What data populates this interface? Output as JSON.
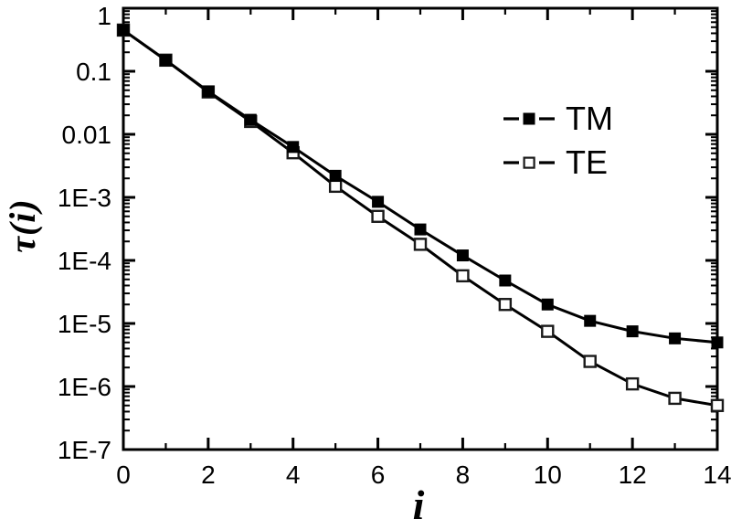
{
  "figure": {
    "background": "#ffffff",
    "axis_color": "#000000"
  },
  "chart_data": {
    "type": "line",
    "title": "",
    "xlabel": "i",
    "ylabel": "τ(i)",
    "x_scale": "linear",
    "y_scale": "log",
    "xlim": [
      0,
      14
    ],
    "ylim": [
      1e-07,
      1
    ],
    "grid": false,
    "legend_position": "upper-right",
    "x_major_ticks": [
      0,
      2,
      4,
      6,
      8,
      10,
      12,
      14
    ],
    "x_minor_ticks": [
      1,
      3,
      5,
      7,
      9,
      11,
      13
    ],
    "x_tick_labels": [
      "0",
      "2",
      "4",
      "6",
      "8",
      "10",
      "12",
      "14"
    ],
    "y_major_ticks": [
      1,
      0.1,
      0.01,
      0.001,
      0.0001,
      1e-05,
      1e-06,
      1e-07
    ],
    "y_tick_labels": [
      "1",
      "0.1",
      "0.01",
      "1E-3",
      "1E-4",
      "1E-5",
      "1E-6",
      "1E-7"
    ],
    "x": [
      0,
      1,
      2,
      3,
      4,
      5,
      6,
      7,
      8,
      9,
      10,
      11,
      12,
      13,
      14
    ],
    "series": [
      {
        "name": "TM",
        "marker": "filled-square",
        "color": "#000000",
        "values": [
          0.45,
          0.15,
          0.048,
          0.017,
          0.0063,
          0.0022,
          0.00085,
          0.00031,
          0.00012,
          4.8e-05,
          2e-05,
          1.1e-05,
          7.5e-06,
          5.8e-06,
          5e-06
        ]
      },
      {
        "name": "TE",
        "marker": "open-square",
        "color": "#000000",
        "values": [
          0.45,
          0.15,
          0.047,
          0.016,
          0.0051,
          0.0015,
          0.0005,
          0.00018,
          5.7e-05,
          2e-05,
          7.5e-06,
          2.5e-06,
          1.1e-06,
          6.5e-07,
          5e-07
        ]
      }
    ]
  }
}
